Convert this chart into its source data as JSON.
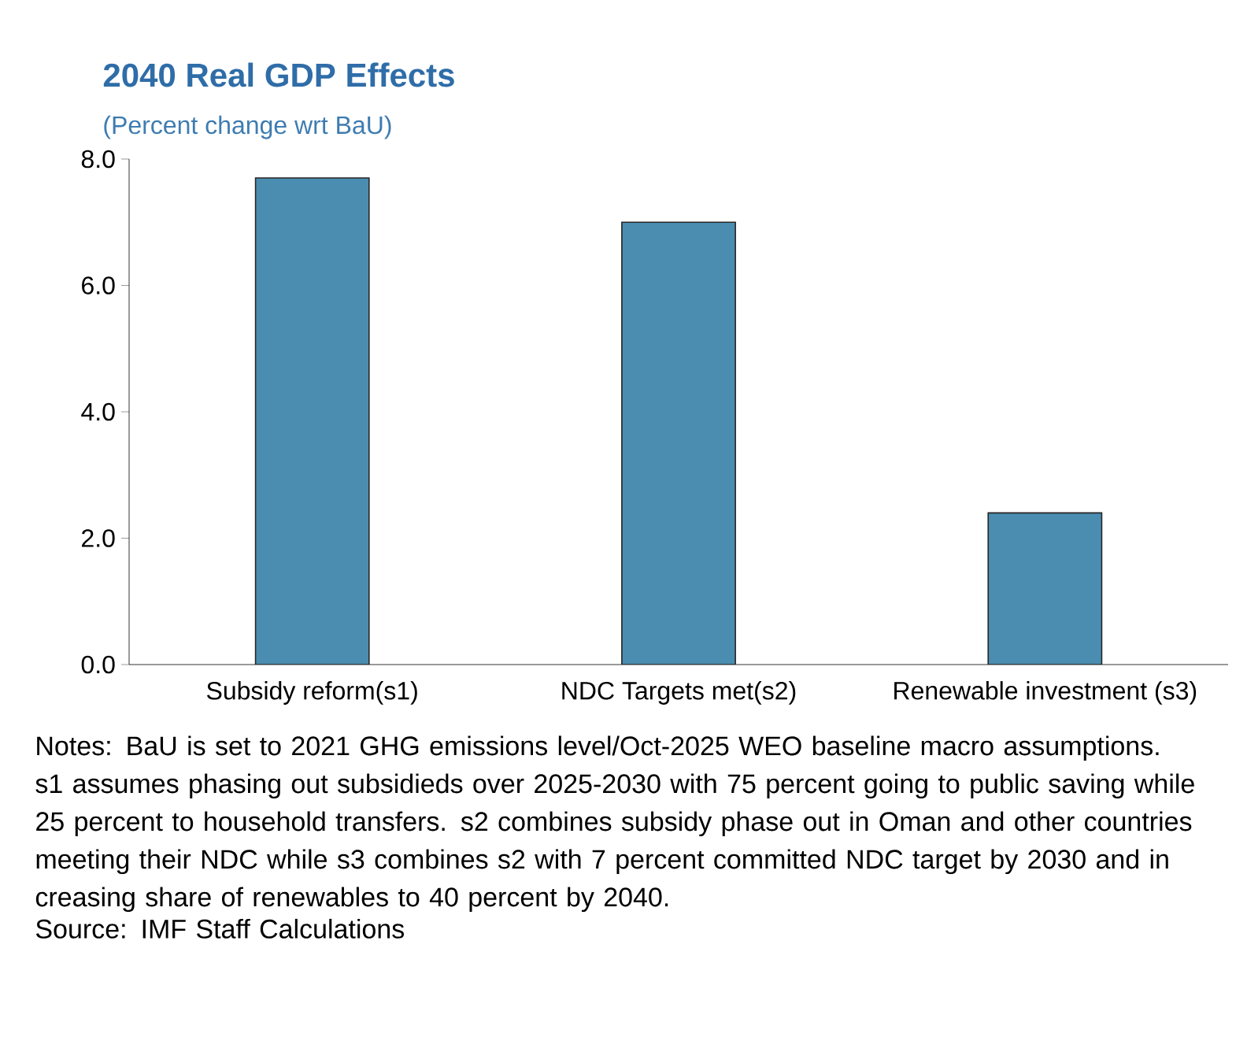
{
  "chart_data": {
    "type": "bar",
    "title": "2040 Real GDP Effects",
    "subtitle": "(Percent change wrt BaU)",
    "categories": [
      "Subsidy reform(s1)",
      "NDC Targets met(s2)",
      "Renewable investment (s3)"
    ],
    "values": [
      7.7,
      7.0,
      2.4
    ],
    "color": "#4a8db0",
    "ylim": [
      0,
      8
    ],
    "yticks": [
      {
        "value": 0,
        "label": "0.0"
      },
      {
        "value": 2,
        "label": "2.0"
      },
      {
        "value": 4,
        "label": "4.0"
      },
      {
        "value": 6,
        "label": "6.0"
      },
      {
        "value": 8,
        "label": "8.0"
      }
    ],
    "grid": false,
    "annotations": [
      "Notes: BaU is set to 2021 GHG emissions level/Oct-2025 WEO baseline macro assumptions. s1 assumes phasing out subsidieds over 2025-2030 with 75 percent going to public saving while 25 percent to household transfers. s2 combines subsidy phase out in Oman and other countries meeting their NDC while s3 combines s2 with 7 percent committed NDC target by 2030 and in creasing share of renewables to 40 percent by 2040.",
      "Source: IMF Staff Calculations"
    ]
  }
}
